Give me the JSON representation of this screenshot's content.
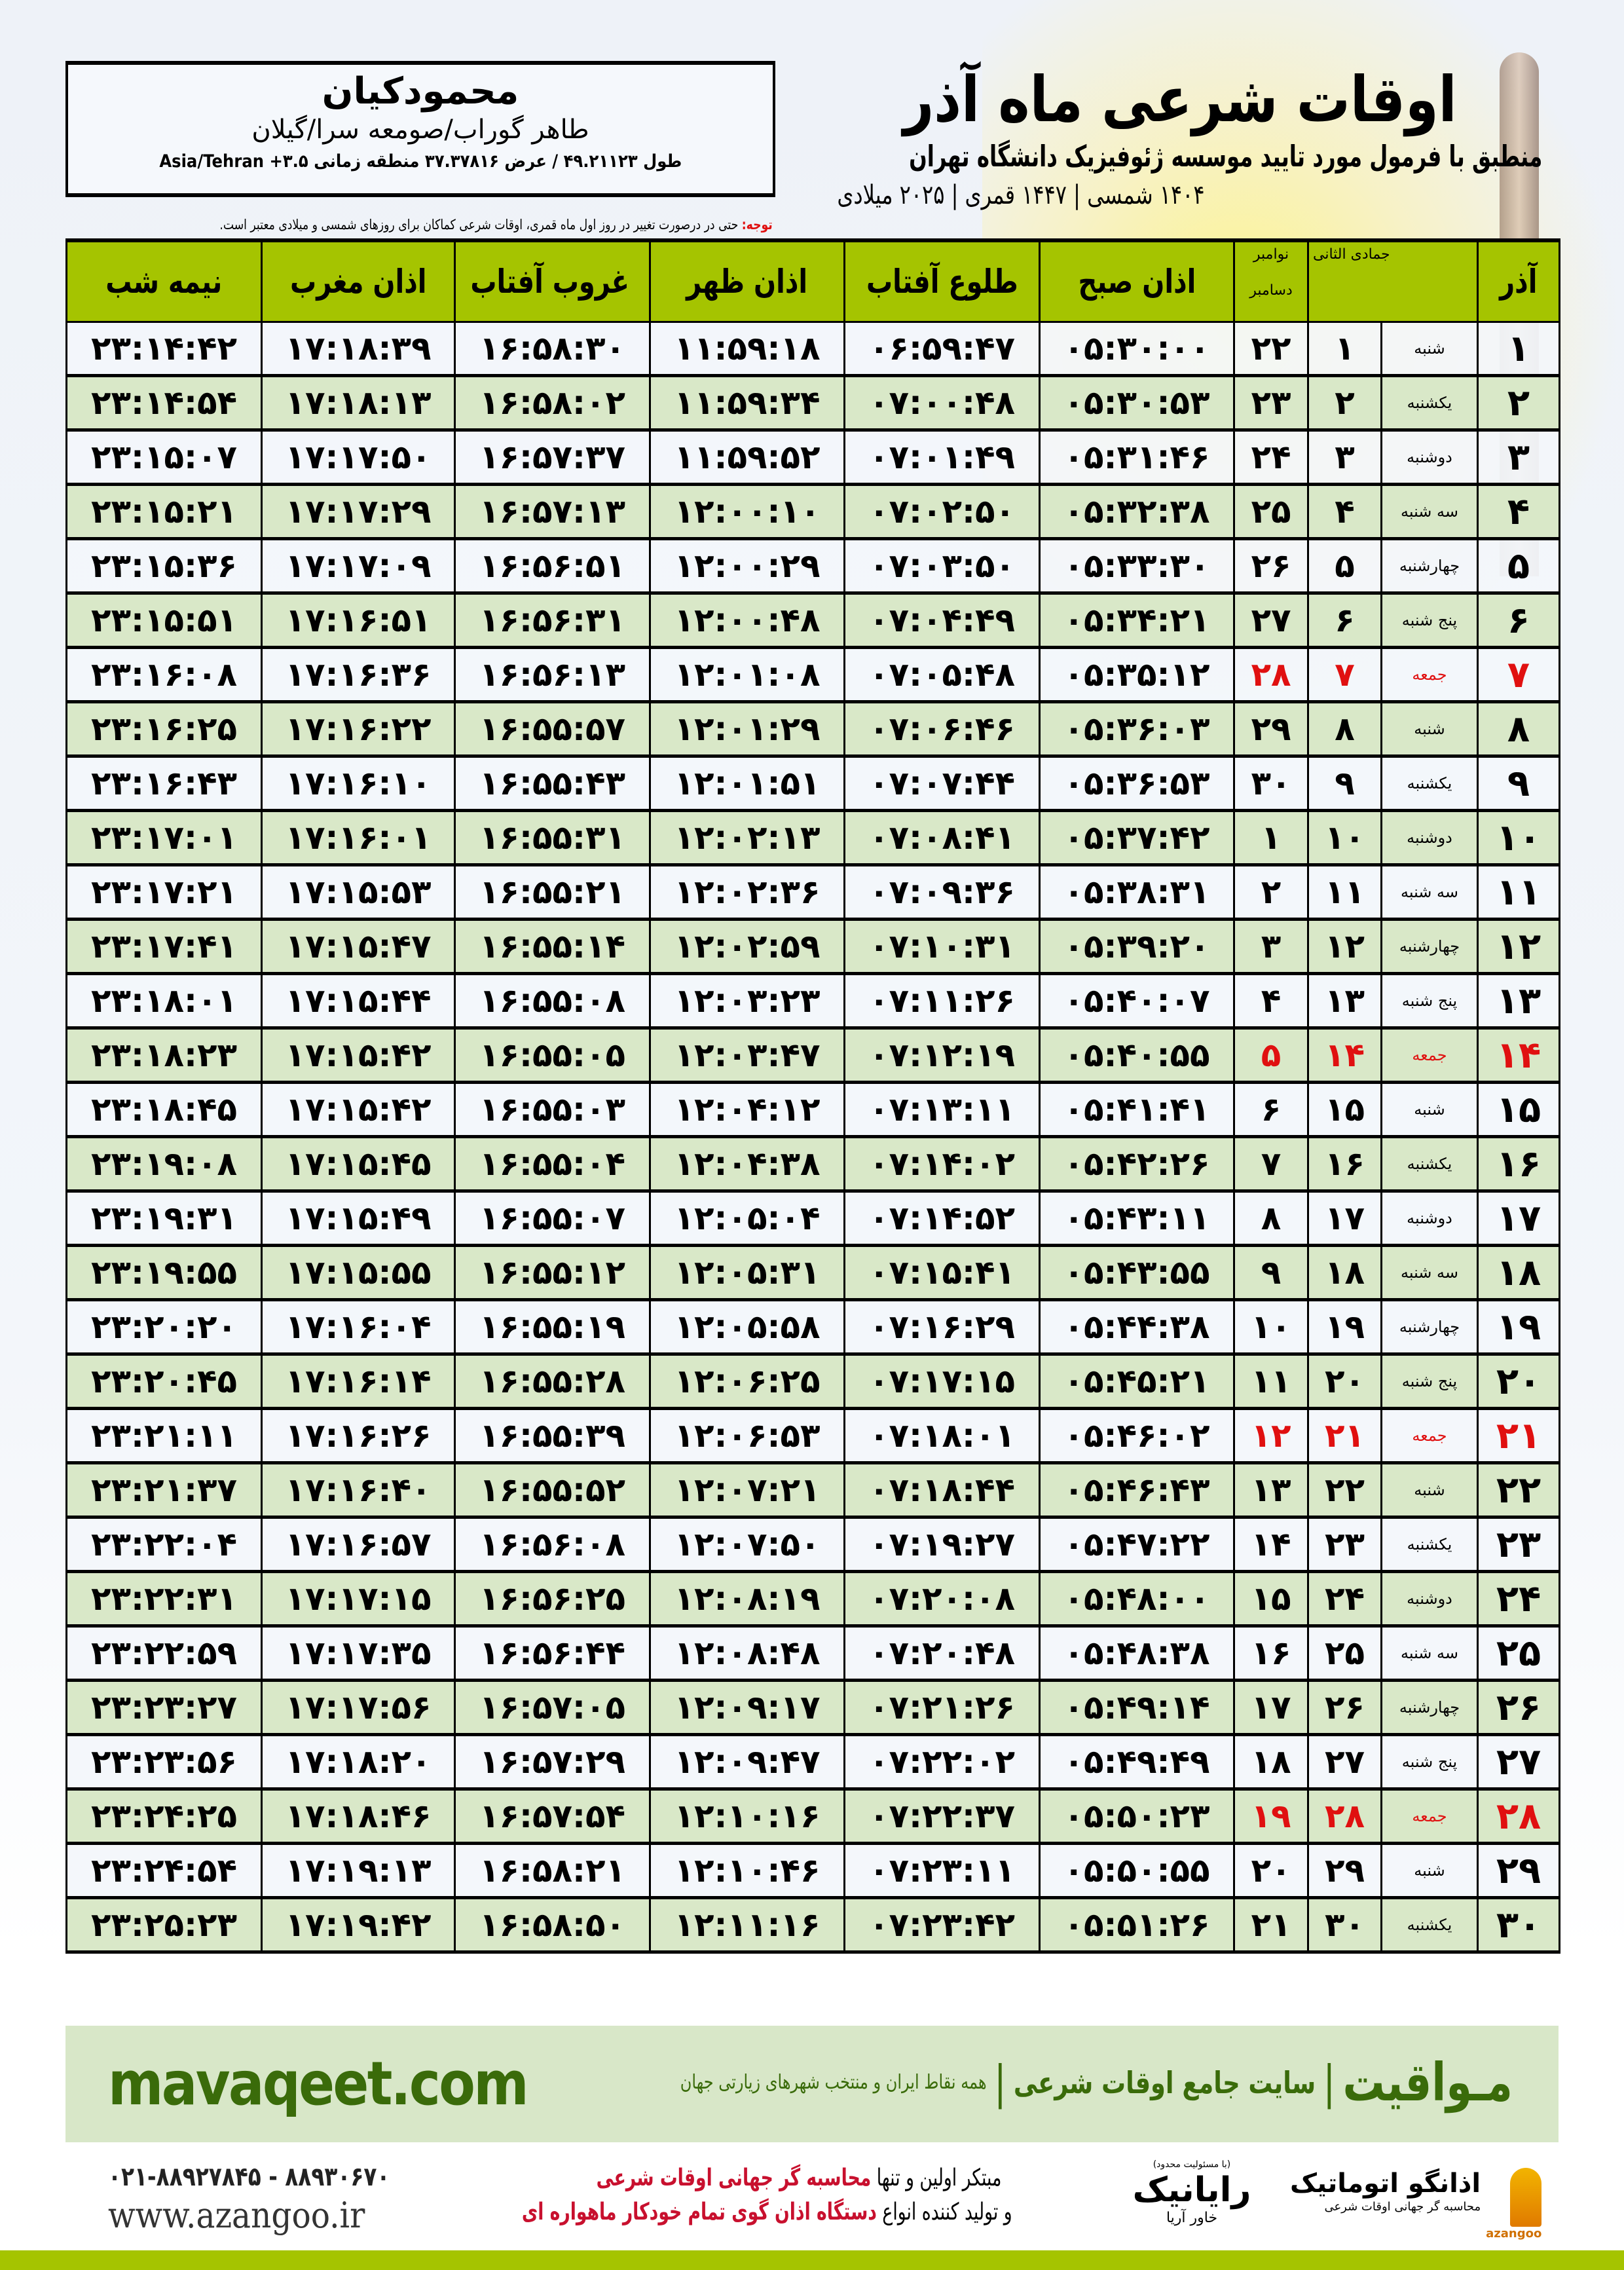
{
  "info": {
    "name": "محمودکیان",
    "place": "طاهر گوراب/صومعه سرا/گیلان",
    "coords": "طول ۴۹.۲۱۱۲۳ / عرض ۳۷.۳۷۸۱۶ منطقه زمانی ۳.۵+ Asia/Tehran"
  },
  "header": {
    "title": "اوقات شرعی ماه آذر",
    "subtitle": "منطبق با فرمول مورد تایید موسسه ژئوفیزیک دانشگاه تهران",
    "years": "۱۴۰۴ شمسی | ۱۴۴۷ قمری | ۲۰۲۵ میلادی"
  },
  "note": {
    "label": "توجه:",
    "text": " حتی در درصورت تغییر در روز اول ماه قمری، اوقات شرعی کماکان برای روزهای شمسی و میلادی معتبر است."
  },
  "colors": {
    "header_green": "#a5c400",
    "row_green": "#d9e8c8",
    "friday_red": "#e01010",
    "brand_green": "#3a6b0a"
  },
  "table": {
    "headers": {
      "month": "آذر",
      "hijri": "جمادی الثانی",
      "greg_top": "نوامبر",
      "greg_bottom": "دسامبر",
      "fajr": "اذان صبح",
      "sunrise": "طلوع آفتاب",
      "dhuhr": "اذان ظهر",
      "sunset": "غروب آفتاب",
      "maghrib": "اذان مغرب",
      "midnight": "نیمه شب"
    },
    "rows": [
      {
        "day": "۱",
        "wd": "شنبه",
        "hj": "۱",
        "gr": "۲۲",
        "fajr": "۰۵:۳۰:۰۰",
        "sunrise": "۰۶:۵۹:۴۷",
        "dhuhr": "۱۱:۵۹:۱۸",
        "sunset": "۱۶:۵۸:۳۰",
        "maghrib": "۱۷:۱۸:۳۹",
        "midnight": "۲۳:۱۴:۴۲"
      },
      {
        "day": "۲",
        "wd": "یکشنبه",
        "hj": "۲",
        "gr": "۲۳",
        "fajr": "۰۵:۳۰:۵۳",
        "sunrise": "۰۷:۰۰:۴۸",
        "dhuhr": "۱۱:۵۹:۳۴",
        "sunset": "۱۶:۵۸:۰۲",
        "maghrib": "۱۷:۱۸:۱۳",
        "midnight": "۲۳:۱۴:۵۴"
      },
      {
        "day": "۳",
        "wd": "دوشنبه",
        "hj": "۳",
        "gr": "۲۴",
        "fajr": "۰۵:۳۱:۴۶",
        "sunrise": "۰۷:۰۱:۴۹",
        "dhuhr": "۱۱:۵۹:۵۲",
        "sunset": "۱۶:۵۷:۳۷",
        "maghrib": "۱۷:۱۷:۵۰",
        "midnight": "۲۳:۱۵:۰۷"
      },
      {
        "day": "۴",
        "wd": "سه شنبه",
        "hj": "۴",
        "gr": "۲۵",
        "fajr": "۰۵:۳۲:۳۸",
        "sunrise": "۰۷:۰۲:۵۰",
        "dhuhr": "۱۲:۰۰:۱۰",
        "sunset": "۱۶:۵۷:۱۳",
        "maghrib": "۱۷:۱۷:۲۹",
        "midnight": "۲۳:۱۵:۲۱"
      },
      {
        "day": "۵",
        "wd": "چهارشنبه",
        "hj": "۵",
        "gr": "۲۶",
        "fajr": "۰۵:۳۳:۳۰",
        "sunrise": "۰۷:۰۳:۵۰",
        "dhuhr": "۱۲:۰۰:۲۹",
        "sunset": "۱۶:۵۶:۵۱",
        "maghrib": "۱۷:۱۷:۰۹",
        "midnight": "۲۳:۱۵:۳۶"
      },
      {
        "day": "۶",
        "wd": "پنج شنبه",
        "hj": "۶",
        "gr": "۲۷",
        "fajr": "۰۵:۳۴:۲۱",
        "sunrise": "۰۷:۰۴:۴۹",
        "dhuhr": "۱۲:۰۰:۴۸",
        "sunset": "۱۶:۵۶:۳۱",
        "maghrib": "۱۷:۱۶:۵۱",
        "midnight": "۲۳:۱۵:۵۱"
      },
      {
        "day": "۷",
        "wd": "جمعه",
        "hj": "۷",
        "gr": "۲۸",
        "fajr": "۰۵:۳۵:۱۲",
        "sunrise": "۰۷:۰۵:۴۸",
        "dhuhr": "۱۲:۰۱:۰۸",
        "sunset": "۱۶:۵۶:۱۳",
        "maghrib": "۱۷:۱۶:۳۶",
        "midnight": "۲۳:۱۶:۰۸",
        "friday": true
      },
      {
        "day": "۸",
        "wd": "شنبه",
        "hj": "۸",
        "gr": "۲۹",
        "fajr": "۰۵:۳۶:۰۳",
        "sunrise": "۰۷:۰۶:۴۶",
        "dhuhr": "۱۲:۰۱:۲۹",
        "sunset": "۱۶:۵۵:۵۷",
        "maghrib": "۱۷:۱۶:۲۲",
        "midnight": "۲۳:۱۶:۲۵"
      },
      {
        "day": "۹",
        "wd": "یکشنبه",
        "hj": "۹",
        "gr": "۳۰",
        "fajr": "۰۵:۳۶:۵۳",
        "sunrise": "۰۷:۰۷:۴۴",
        "dhuhr": "۱۲:۰۱:۵۱",
        "sunset": "۱۶:۵۵:۴۳",
        "maghrib": "۱۷:۱۶:۱۰",
        "midnight": "۲۳:۱۶:۴۳"
      },
      {
        "day": "۱۰",
        "wd": "دوشنبه",
        "hj": "۱۰",
        "gr": "۱",
        "fajr": "۰۵:۳۷:۴۲",
        "sunrise": "۰۷:۰۸:۴۱",
        "dhuhr": "۱۲:۰۲:۱۳",
        "sunset": "۱۶:۵۵:۳۱",
        "maghrib": "۱۷:۱۶:۰۱",
        "midnight": "۲۳:۱۷:۰۱"
      },
      {
        "day": "۱۱",
        "wd": "سه شنبه",
        "hj": "۱۱",
        "gr": "۲",
        "fajr": "۰۵:۳۸:۳۱",
        "sunrise": "۰۷:۰۹:۳۶",
        "dhuhr": "۱۲:۰۲:۳۶",
        "sunset": "۱۶:۵۵:۲۱",
        "maghrib": "۱۷:۱۵:۵۳",
        "midnight": "۲۳:۱۷:۲۱"
      },
      {
        "day": "۱۲",
        "wd": "چهارشنبه",
        "hj": "۱۲",
        "gr": "۳",
        "fajr": "۰۵:۳۹:۲۰",
        "sunrise": "۰۷:۱۰:۳۱",
        "dhuhr": "۱۲:۰۲:۵۹",
        "sunset": "۱۶:۵۵:۱۴",
        "maghrib": "۱۷:۱۵:۴۷",
        "midnight": "۲۳:۱۷:۴۱"
      },
      {
        "day": "۱۳",
        "wd": "پنج شنبه",
        "hj": "۱۳",
        "gr": "۴",
        "fajr": "۰۵:۴۰:۰۷",
        "sunrise": "۰۷:۱۱:۲۶",
        "dhuhr": "۱۲:۰۳:۲۳",
        "sunset": "۱۶:۵۵:۰۸",
        "maghrib": "۱۷:۱۵:۴۴",
        "midnight": "۲۳:۱۸:۰۱"
      },
      {
        "day": "۱۴",
        "wd": "جمعه",
        "hj": "۱۴",
        "gr": "۵",
        "fajr": "۰۵:۴۰:۵۵",
        "sunrise": "۰۷:۱۲:۱۹",
        "dhuhr": "۱۲:۰۳:۴۷",
        "sunset": "۱۶:۵۵:۰۵",
        "maghrib": "۱۷:۱۵:۴۲",
        "midnight": "۲۳:۱۸:۲۳",
        "friday": true
      },
      {
        "day": "۱۵",
        "wd": "شنبه",
        "hj": "۱۵",
        "gr": "۶",
        "fajr": "۰۵:۴۱:۴۱",
        "sunrise": "۰۷:۱۳:۱۱",
        "dhuhr": "۱۲:۰۴:۱۲",
        "sunset": "۱۶:۵۵:۰۳",
        "maghrib": "۱۷:۱۵:۴۲",
        "midnight": "۲۳:۱۸:۴۵"
      },
      {
        "day": "۱۶",
        "wd": "یکشنبه",
        "hj": "۱۶",
        "gr": "۷",
        "fajr": "۰۵:۴۲:۲۶",
        "sunrise": "۰۷:۱۴:۰۲",
        "dhuhr": "۱۲:۰۴:۳۸",
        "sunset": "۱۶:۵۵:۰۴",
        "maghrib": "۱۷:۱۵:۴۵",
        "midnight": "۲۳:۱۹:۰۸"
      },
      {
        "day": "۱۷",
        "wd": "دوشنبه",
        "hj": "۱۷",
        "gr": "۸",
        "fajr": "۰۵:۴۳:۱۱",
        "sunrise": "۰۷:۱۴:۵۲",
        "dhuhr": "۱۲:۰۵:۰۴",
        "sunset": "۱۶:۵۵:۰۷",
        "maghrib": "۱۷:۱۵:۴۹",
        "midnight": "۲۳:۱۹:۳۱"
      },
      {
        "day": "۱۸",
        "wd": "سه شنبه",
        "hj": "۱۸",
        "gr": "۹",
        "fajr": "۰۵:۴۳:۵۵",
        "sunrise": "۰۷:۱۵:۴۱",
        "dhuhr": "۱۲:۰۵:۳۱",
        "sunset": "۱۶:۵۵:۱۲",
        "maghrib": "۱۷:۱۵:۵۵",
        "midnight": "۲۳:۱۹:۵۵"
      },
      {
        "day": "۱۹",
        "wd": "چهارشنبه",
        "hj": "۱۹",
        "gr": "۱۰",
        "fajr": "۰۵:۴۴:۳۸",
        "sunrise": "۰۷:۱۶:۲۹",
        "dhuhr": "۱۲:۰۵:۵۸",
        "sunset": "۱۶:۵۵:۱۹",
        "maghrib": "۱۷:۱۶:۰۴",
        "midnight": "۲۳:۲۰:۲۰"
      },
      {
        "day": "۲۰",
        "wd": "پنج شنبه",
        "hj": "۲۰",
        "gr": "۱۱",
        "fajr": "۰۵:۴۵:۲۱",
        "sunrise": "۰۷:۱۷:۱۵",
        "dhuhr": "۱۲:۰۶:۲۵",
        "sunset": "۱۶:۵۵:۲۸",
        "maghrib": "۱۷:۱۶:۱۴",
        "midnight": "۲۳:۲۰:۴۵"
      },
      {
        "day": "۲۱",
        "wd": "جمعه",
        "hj": "۲۱",
        "gr": "۱۲",
        "fajr": "۰۵:۴۶:۰۲",
        "sunrise": "۰۷:۱۸:۰۱",
        "dhuhr": "۱۲:۰۶:۵۳",
        "sunset": "۱۶:۵۵:۳۹",
        "maghrib": "۱۷:۱۶:۲۶",
        "midnight": "۲۳:۲۱:۱۱",
        "friday": true
      },
      {
        "day": "۲۲",
        "wd": "شنبه",
        "hj": "۲۲",
        "gr": "۱۳",
        "fajr": "۰۵:۴۶:۴۳",
        "sunrise": "۰۷:۱۸:۴۴",
        "dhuhr": "۱۲:۰۷:۲۱",
        "sunset": "۱۶:۵۵:۵۲",
        "maghrib": "۱۷:۱۶:۴۰",
        "midnight": "۲۳:۲۱:۳۷"
      },
      {
        "day": "۲۳",
        "wd": "یکشنبه",
        "hj": "۲۳",
        "gr": "۱۴",
        "fajr": "۰۵:۴۷:۲۲",
        "sunrise": "۰۷:۱۹:۲۷",
        "dhuhr": "۱۲:۰۷:۵۰",
        "sunset": "۱۶:۵۶:۰۸",
        "maghrib": "۱۷:۱۶:۵۷",
        "midnight": "۲۳:۲۲:۰۴"
      },
      {
        "day": "۲۴",
        "wd": "دوشنبه",
        "hj": "۲۴",
        "gr": "۱۵",
        "fajr": "۰۵:۴۸:۰۰",
        "sunrise": "۰۷:۲۰:۰۸",
        "dhuhr": "۱۲:۰۸:۱۹",
        "sunset": "۱۶:۵۶:۲۵",
        "maghrib": "۱۷:۱۷:۱۵",
        "midnight": "۲۳:۲۲:۳۱"
      },
      {
        "day": "۲۵",
        "wd": "سه شنبه",
        "hj": "۲۵",
        "gr": "۱۶",
        "fajr": "۰۵:۴۸:۳۸",
        "sunrise": "۰۷:۲۰:۴۸",
        "dhuhr": "۱۲:۰۸:۴۸",
        "sunset": "۱۶:۵۶:۴۴",
        "maghrib": "۱۷:۱۷:۳۵",
        "midnight": "۲۳:۲۲:۵۹"
      },
      {
        "day": "۲۶",
        "wd": "چهارشنبه",
        "hj": "۲۶",
        "gr": "۱۷",
        "fajr": "۰۵:۴۹:۱۴",
        "sunrise": "۰۷:۲۱:۲۶",
        "dhuhr": "۱۲:۰۹:۱۷",
        "sunset": "۱۶:۵۷:۰۵",
        "maghrib": "۱۷:۱۷:۵۶",
        "midnight": "۲۳:۲۳:۲۷"
      },
      {
        "day": "۲۷",
        "wd": "پنج شنبه",
        "hj": "۲۷",
        "gr": "۱۸",
        "fajr": "۰۵:۴۹:۴۹",
        "sunrise": "۰۷:۲۲:۰۲",
        "dhuhr": "۱۲:۰۹:۴۷",
        "sunset": "۱۶:۵۷:۲۹",
        "maghrib": "۱۷:۱۸:۲۰",
        "midnight": "۲۳:۲۳:۵۶"
      },
      {
        "day": "۲۸",
        "wd": "جمعه",
        "hj": "۲۸",
        "gr": "۱۹",
        "fajr": "۰۵:۵۰:۲۳",
        "sunrise": "۰۷:۲۲:۳۷",
        "dhuhr": "۱۲:۱۰:۱۶",
        "sunset": "۱۶:۵۷:۵۴",
        "maghrib": "۱۷:۱۸:۴۶",
        "midnight": "۲۳:۲۴:۲۵",
        "friday": true
      },
      {
        "day": "۲۹",
        "wd": "شنبه",
        "hj": "۲۹",
        "gr": "۲۰",
        "fajr": "۰۵:۵۰:۵۵",
        "sunrise": "۰۷:۲۳:۱۱",
        "dhuhr": "۱۲:۱۰:۴۶",
        "sunset": "۱۶:۵۸:۲۱",
        "maghrib": "۱۷:۱۹:۱۳",
        "midnight": "۲۳:۲۴:۵۴"
      },
      {
        "day": "۳۰",
        "wd": "یکشنبه",
        "hj": "۳۰",
        "gr": "۲۱",
        "fajr": "۰۵:۵۱:۲۶",
        "sunrise": "۰۷:۲۳:۴۲",
        "dhuhr": "۱۲:۱۱:۱۶",
        "sunset": "۱۶:۵۸:۵۰",
        "maghrib": "۱۷:۱۹:۴۲",
        "midnight": "۲۳:۲۵:۲۳"
      }
    ]
  },
  "banner": {
    "brand": "مـواقیت",
    "site": "سایت جامع اوقات شرعی",
    "scope": "همه نقاط ایران و منتخب شهرهای زیارتی جهان",
    "separator": "|",
    "url": "mavaqeet.com"
  },
  "footer": {
    "phone": "۰۲۱-۸۸۹۲۷۸۴۵ - ۸۸۹۳۰۶۷۰",
    "website": "www.azangoo.ir",
    "line1_plain": "مبتکر اولین و تنها ",
    "line1_red": "محاسبه گر جهانی اوقات شرعی",
    "line2_plain": "و تولید کننده انواع ",
    "line2_red": "دستگاه اذان گوی تمام خودکار ماهواره ای",
    "raianik_small": "(با مسئولیت محدود)",
    "raianik_name": "رایانیک",
    "raianik_sub": "خاور آریا",
    "azangoo_name": "اذانگو اتوماتیک",
    "azangoo_sub": "محاسبه گر جهانی اوقات شرعی",
    "azangoo_en": "azangoo"
  }
}
